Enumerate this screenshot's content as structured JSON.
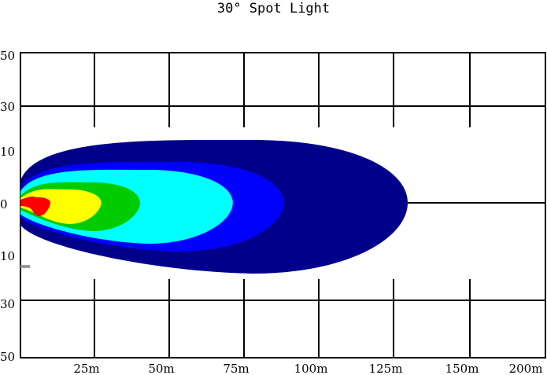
{
  "chart_data": {
    "type": "area",
    "title": "30° Spot Light",
    "x_ticks": [
      "25m",
      "50m",
      "75m",
      "100m",
      "125m",
      "150m",
      "200m"
    ],
    "y_ticks": [
      "50",
      "30",
      "10",
      "0",
      "10",
      "30",
      "50"
    ],
    "beam_reach_m": 125,
    "series": [
      {
        "color": "#00008b",
        "length_m": 125
      },
      {
        "color": "#0000ff",
        "length_m": 88
      },
      {
        "color": "#00ffff",
        "length_m": 71
      },
      {
        "color": "#00cc00",
        "length_m": 40
      },
      {
        "color": "#ffff00",
        "length_m": 27
      },
      {
        "color": "#ff0000",
        "length_m": 10
      }
    ],
    "grid": true
  }
}
